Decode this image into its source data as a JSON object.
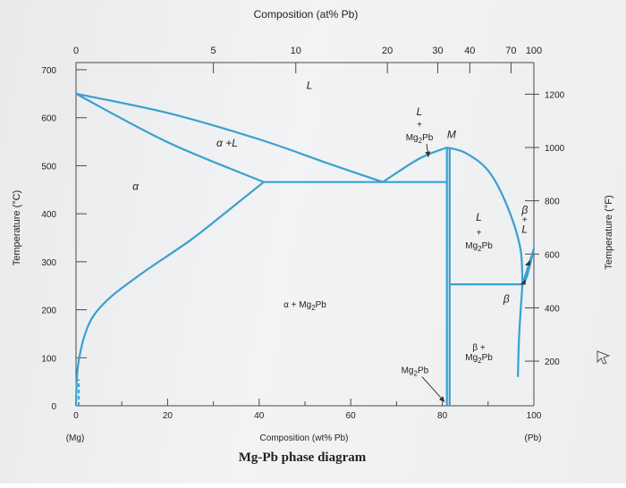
{
  "chart_data": {
    "type": "line",
    "title": "Mg-Pb phase diagram",
    "xlabel": "Composition (wt% Pb)",
    "x_top_label": "Composition (at% Pb)",
    "ylabel": "Temperature (°C)",
    "y_right_label": "Temperature (°F)",
    "xlim": [
      0,
      100
    ],
    "ylim": [
      0,
      700
    ],
    "x_ticks": [
      "0",
      "20",
      "40",
      "60",
      "80",
      "100"
    ],
    "y_ticks": [
      "0",
      "100",
      "200",
      "300",
      "400",
      "500",
      "600",
      "700"
    ],
    "x_end_labels": {
      "left": "(Mg)",
      "right": "(Pb)"
    },
    "top_ticks": [
      {
        "at": 0,
        "wt": 0
      },
      {
        "at": 5,
        "wt": 30
      },
      {
        "at": 10,
        "wt": 48
      },
      {
        "at": 20,
        "wt": 68
      },
      {
        "at": 30,
        "wt": 79
      },
      {
        "at": 40,
        "wt": 86
      },
      {
        "at": 70,
        "wt": 95
      },
      {
        "at": 100,
        "wt": 100
      }
    ],
    "right_ticks": [
      {
        "f": "1200",
        "c": 649
      },
      {
        "f": "1000",
        "c": 538
      },
      {
        "f": "800",
        "c": 427
      },
      {
        "f": "600",
        "c": 316
      },
      {
        "f": "400",
        "c": 204
      },
      {
        "f": "200",
        "c": 93
      }
    ],
    "series": [
      {
        "id": "liquidus-alpha",
        "points": [
          [
            0,
            650
          ],
          [
            20,
            610
          ],
          [
            40,
            555
          ],
          [
            55,
            505
          ],
          [
            67,
            466
          ]
        ]
      },
      {
        "id": "solidus-alpha",
        "points": [
          [
            0,
            650
          ],
          [
            20,
            549
          ],
          [
            41,
            466
          ]
        ]
      },
      {
        "id": "solvus-alpha",
        "points": [
          [
            0,
            0
          ],
          [
            0.2,
            60
          ],
          [
            0.7,
            100
          ],
          [
            2,
            150
          ],
          [
            4,
            190
          ],
          [
            8,
            230
          ],
          [
            15,
            280
          ],
          [
            25,
            345
          ],
          [
            33,
            405
          ],
          [
            41,
            466
          ]
        ]
      },
      {
        "id": "eutectic-1",
        "points": [
          [
            41,
            466
          ],
          [
            81,
            466
          ]
        ]
      },
      {
        "id": "liquidus-mg2pb-left",
        "points": [
          [
            67,
            466
          ],
          [
            75,
            515
          ],
          [
            81,
            538
          ]
        ]
      },
      {
        "id": "liquidus-mg2pb-right",
        "points": [
          [
            81,
            538
          ],
          [
            85,
            527
          ],
          [
            90,
            490
          ],
          [
            94,
            420
          ],
          [
            97,
            330
          ],
          [
            97.5,
            253
          ]
        ]
      },
      {
        "id": "mg2pb-left",
        "points": [
          [
            81,
            538
          ],
          [
            81,
            466
          ],
          [
            81,
            0
          ]
        ]
      },
      {
        "id": "mg2pb-right",
        "points": [
          [
            81.6,
            538
          ],
          [
            81.6,
            0
          ]
        ]
      },
      {
        "id": "eutectic-2",
        "points": [
          [
            81.6,
            253
          ],
          [
            97.5,
            253
          ]
        ]
      },
      {
        "id": "beta-liquidus",
        "points": [
          [
            97.5,
            253
          ],
          [
            100,
            327
          ]
        ]
      },
      {
        "id": "beta-solidus",
        "points": [
          [
            97.5,
            253
          ],
          [
            98.5,
            270
          ],
          [
            100,
            327
          ]
        ]
      },
      {
        "id": "beta-solvus",
        "points": [
          [
            97.5,
            253
          ],
          [
            96.8,
            150
          ],
          [
            96.5,
            60
          ]
        ]
      }
    ],
    "annotations": [
      {
        "text": "L",
        "x": 51,
        "y": 660,
        "italic": true
      },
      {
        "text": "L",
        "x": 75,
        "y": 605,
        "italic": true
      },
      {
        "text": "+",
        "x": 75,
        "y": 580
      },
      {
        "text": "Mg2Pb",
        "x": 75,
        "y": 553,
        "arrow_to": [
          77,
          518
        ]
      },
      {
        "text": "M",
        "x": 82,
        "y": 558,
        "italic": true
      },
      {
        "text": "α +L",
        "x": 33,
        "y": 540,
        "italic": true
      },
      {
        "text": "α",
        "x": 13,
        "y": 450,
        "italic": true
      },
      {
        "text": "L",
        "x": 88,
        "y": 385,
        "italic": true
      },
      {
        "text": "+",
        "x": 88,
        "y": 355
      },
      {
        "text": "Mg2Pb",
        "x": 88,
        "y": 328
      },
      {
        "text": "β",
        "x": 98,
        "y": 400,
        "italic": true
      },
      {
        "text": "+",
        "x": 98,
        "y": 382
      },
      {
        "text": "L",
        "x": 98,
        "y": 360,
        "italic": true
      },
      {
        "text": "β",
        "x": 94,
        "y": 215,
        "italic": true
      },
      {
        "text": "α + Mg2Pb",
        "x": 50,
        "y": 205
      },
      {
        "text": "β +",
        "x": 88,
        "y": 115
      },
      {
        "text": "Mg2Pb",
        "x": 88,
        "y": 95
      },
      {
        "text": "Mg2Pb",
        "x": 74,
        "y": 68,
        "arrow_to": [
          80.5,
          8
        ]
      }
    ],
    "grid": false,
    "legend": "none"
  },
  "style": {
    "curve_color": "#3aa0cf",
    "axis_color": "#4a4a4a"
  }
}
